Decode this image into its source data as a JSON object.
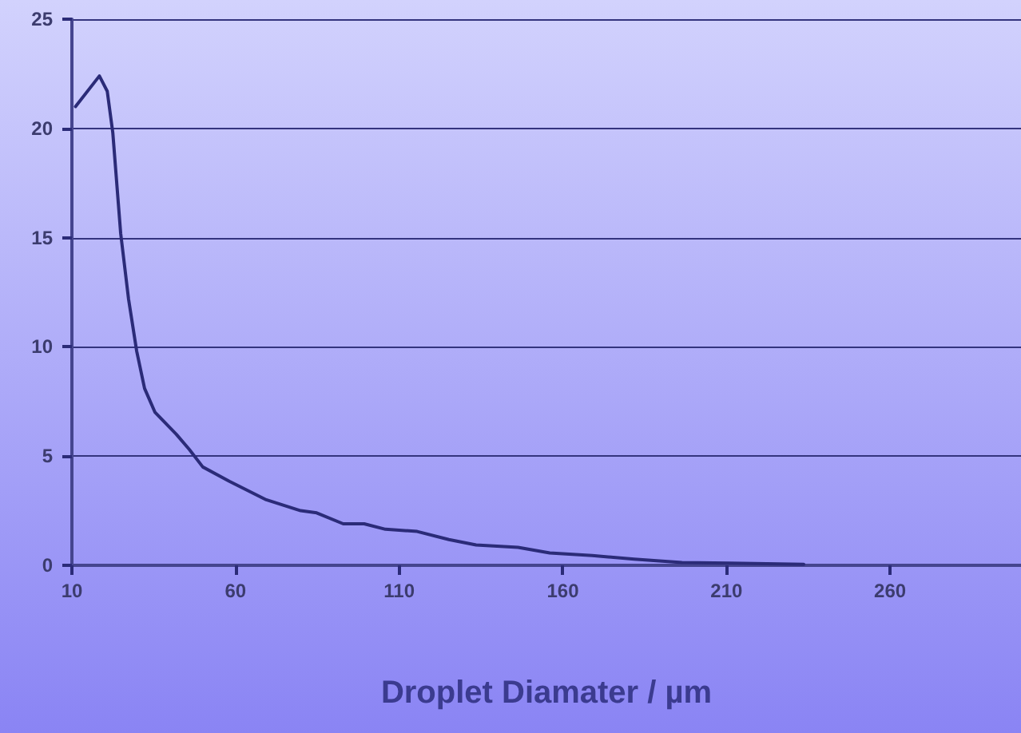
{
  "chart_data": {
    "type": "line",
    "xlabel": "Droplet Diamater / µm",
    "x": [
      11.1,
      18.4,
      20.8,
      22.5,
      24.9,
      27.3,
      29.8,
      32.2,
      35.4,
      41.9,
      45.9,
      50,
      58.1,
      69.4,
      79.9,
      84.8,
      92.9,
      99.3,
      105.8,
      115.5,
      125.2,
      133.5,
      146.3,
      156,
      169,
      181.8,
      196.4,
      211,
      233.6
    ],
    "series": [
      {
        "color": "#2b2b78",
        "values": [
          21.0,
          22.4,
          21.7,
          19.8,
          15.2,
          12.2,
          9.8,
          8.1,
          7.0,
          6.0,
          5.3,
          4.5,
          3.85,
          3.0,
          2.5,
          2.4,
          1.9,
          1.9,
          1.65,
          1.55,
          1.18,
          0.93,
          0.82,
          0.57,
          0.45,
          0.28,
          0.13,
          0.1,
          0.05
        ]
      }
    ],
    "xlim": [
      10,
      300
    ],
    "xticks": [
      10,
      60,
      110,
      160,
      210,
      260
    ],
    "ylim": [
      0,
      25
    ],
    "yticks": [
      0,
      5,
      10,
      15,
      20,
      25
    ],
    "grid": "y",
    "marker": "none",
    "line_style": "solid"
  }
}
